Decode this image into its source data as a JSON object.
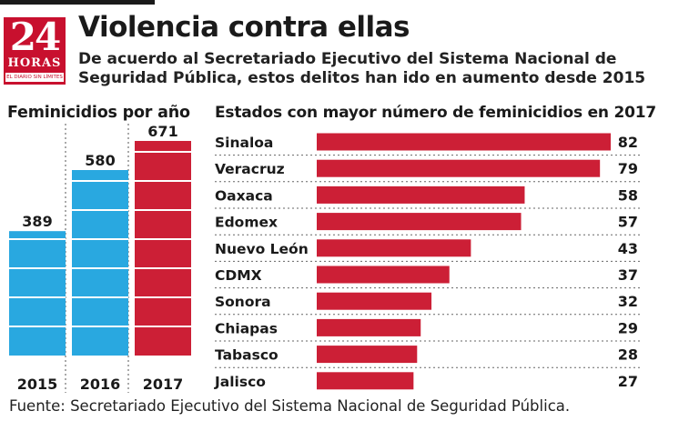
{
  "header": {
    "title": "Violencia contra ellas",
    "subtitle": "De acuerdo al Secretariado Ejecutivo del Sistema Nacional de Seguridad Pública, estos delitos han ido en aumento desde 2015"
  },
  "logo": {
    "number": "24",
    "word": "HORAS",
    "tagline": "EL DIARIO SIN LÍMITES"
  },
  "source": "Fuente: Secretariado Ejecutivo del Sistema Nacional de Seguridad Pública.",
  "colors": {
    "blue": "#29a8e0",
    "red": "#cc1f36",
    "brand_red": "#c8102e",
    "text": "#1a1a1a"
  },
  "chart_data": [
    {
      "type": "bar",
      "title": "Feminicidios por año",
      "categories": [
        "2015",
        "2016",
        "2017"
      ],
      "values": [
        389,
        580,
        671
      ],
      "bar_colors": [
        "#29a8e0",
        "#29a8e0",
        "#cc1f36"
      ],
      "ylim": [
        0,
        671
      ],
      "grid": false
    },
    {
      "type": "bar",
      "orientation": "horizontal",
      "title": "Estados con mayor número de feminicidios en 2017",
      "categories": [
        "Sinaloa",
        "Veracruz",
        "Oaxaca",
        "Edomex",
        "Nuevo León",
        "CDMX",
        "Sonora",
        "Chiapas",
        "Tabasco",
        "Jalisco"
      ],
      "values": [
        82,
        79,
        58,
        57,
        43,
        37,
        32,
        29,
        28,
        27
      ],
      "bar_color": "#cc1f36",
      "xlim": [
        0,
        82
      ],
      "grid": false
    }
  ]
}
